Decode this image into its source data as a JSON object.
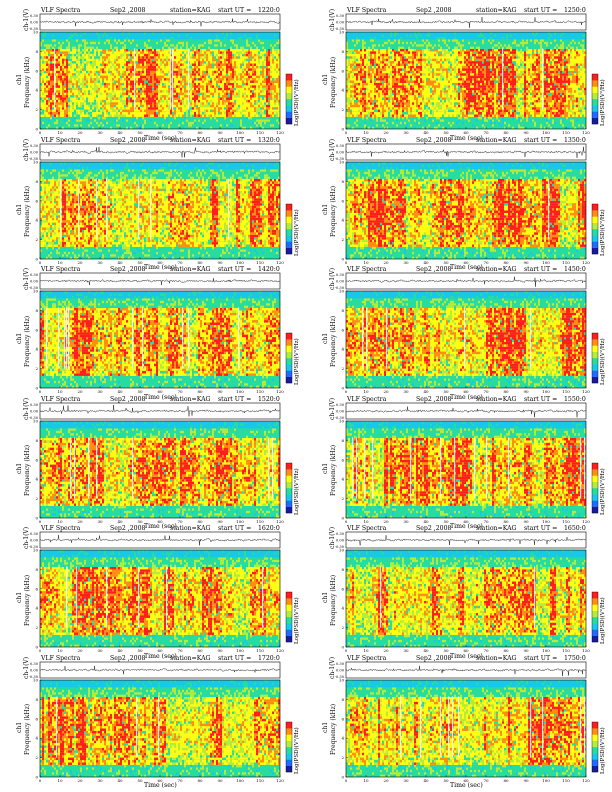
{
  "chart_data": {
    "type": "heatmap",
    "panel_common": {
      "title_left": "VLF Spectra",
      "date": "Sep2 ,2008",
      "station": "station=KAG",
      "start_prefix": "start  UT  =",
      "xlabel": "Time  (sec)",
      "ylabel_ts": "ch-1(V)",
      "ylabel_spec": "Frequency  (kHz)",
      "ylabel_spec_prefix": "ch1",
      "cbar_label": "Log(PSD)(V²/Hz)",
      "x_ticks": [
        "0",
        "10",
        "20",
        "30",
        "40",
        "50",
        "60",
        "70",
        "80",
        "90",
        "100",
        "110",
        "120"
      ],
      "xlim": [
        0,
        120
      ],
      "freq_ticks": [
        "0",
        "2",
        "4",
        "6",
        "8",
        "10"
      ],
      "ylim_freq": [
        0,
        10
      ],
      "ts_ticks": [
        "0.30",
        "0.00",
        "-0.30"
      ],
      "ylim_ts": [
        -0.3,
        0.3
      ],
      "colorscale": [
        "#1a1aa0",
        "#1e6bff",
        "#19c8e6",
        "#28dca0",
        "#b4eb3c",
        "#ffff14",
        "#ff8c14",
        "#ff1e1e"
      ]
    },
    "panels": [
      {
        "start_ut": "1220:0"
      },
      {
        "start_ut": "1250:0"
      },
      {
        "start_ut": "1320:0"
      },
      {
        "start_ut": "1350:0"
      },
      {
        "start_ut": "1420:0"
      },
      {
        "start_ut": "1450:0"
      },
      {
        "start_ut": "1520:0"
      },
      {
        "start_ut": "1550:0"
      },
      {
        "start_ut": "1620:0"
      },
      {
        "start_ut": "1650:0"
      },
      {
        "start_ut": "1720:0"
      },
      {
        "start_ut": "1750:0"
      }
    ]
  }
}
